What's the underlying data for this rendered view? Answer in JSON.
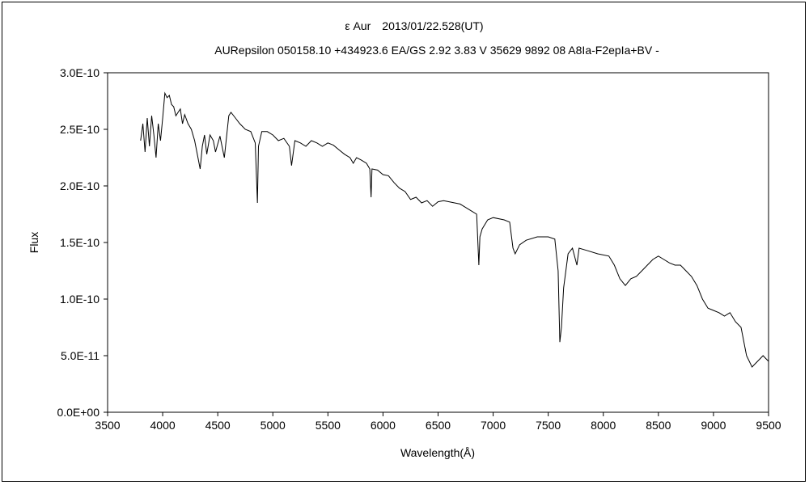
{
  "chart_data": {
    "type": "line",
    "title": "ε Aur　2013/01/22.528(UT)",
    "subtitle": "AURepsilon 050158.10 +434923.6 EA/GS 2.92 3.83 V 35629 9892 08 A8Ia-F2epIa+BV -",
    "xlabel": "Wavelength(Å)",
    "ylabel": "Flux",
    "xlim": [
      3500,
      9500
    ],
    "ylim": [
      0,
      3e-10
    ],
    "xticks": [
      3500,
      4000,
      4500,
      5000,
      5500,
      6000,
      6500,
      7000,
      7500,
      8000,
      8500,
      9000,
      9500
    ],
    "xtick_labels": [
      "3500",
      "4000",
      "4500",
      "5000",
      "5500",
      "6000",
      "6500",
      "7000",
      "7500",
      "8000",
      "8500",
      "9000",
      "9500"
    ],
    "yticks": [
      0,
      5e-11,
      1e-10,
      1.5e-10,
      2e-10,
      2.5e-10,
      3e-10
    ],
    "ytick_labels": [
      "0.0E+00",
      "5.0E-11",
      "1.0E-10",
      "1.5E-10",
      "2.0E-10",
      "2.5E-10",
      "3.0E-10"
    ],
    "grid": false,
    "line_color": "#000000",
    "x": [
      3800,
      3820,
      3840,
      3860,
      3880,
      3900,
      3920,
      3940,
      3960,
      3980,
      4000,
      4020,
      4040,
      4060,
      4080,
      4100,
      4120,
      4140,
      4160,
      4180,
      4200,
      4230,
      4260,
      4290,
      4320,
      4340,
      4360,
      4380,
      4400,
      4430,
      4460,
      4480,
      4520,
      4560,
      4600,
      4620,
      4660,
      4700,
      4750,
      4800,
      4840,
      4860,
      4870,
      4900,
      4950,
      5000,
      5050,
      5100,
      5150,
      5170,
      5200,
      5250,
      5300,
      5350,
      5400,
      5450,
      5500,
      5550,
      5600,
      5650,
      5700,
      5730,
      5760,
      5800,
      5850,
      5880,
      5892,
      5900,
      5950,
      6000,
      6050,
      6100,
      6150,
      6200,
      6250,
      6300,
      6350,
      6400,
      6450,
      6500,
      6550,
      6600,
      6650,
      6700,
      6800,
      6850,
      6870,
      6880,
      6900,
      6950,
      7000,
      7100,
      7150,
      7180,
      7200,
      7240,
      7300,
      7400,
      7500,
      7560,
      7590,
      7605,
      7620,
      7640,
      7680,
      7720,
      7760,
      7780,
      7850,
      7950,
      8050,
      8100,
      8150,
      8200,
      8250,
      8300,
      8350,
      8400,
      8450,
      8500,
      8550,
      8600,
      8650,
      8700,
      8750,
      8800,
      8850,
      8900,
      8950,
      9000,
      9050,
      9100,
      9150,
      9200,
      9250,
      9300,
      9350,
      9400,
      9450,
      9500
    ],
    "y": [
      2.4,
      2.55,
      2.3,
      2.6,
      2.35,
      2.62,
      2.45,
      2.25,
      2.55,
      2.4,
      2.6,
      2.82,
      2.78,
      2.8,
      2.72,
      2.7,
      2.62,
      2.65,
      2.68,
      2.55,
      2.63,
      2.55,
      2.5,
      2.4,
      2.25,
      2.15,
      2.35,
      2.45,
      2.28,
      2.45,
      2.4,
      2.3,
      2.44,
      2.25,
      2.62,
      2.65,
      2.6,
      2.55,
      2.5,
      2.48,
      2.38,
      1.85,
      2.35,
      2.48,
      2.48,
      2.45,
      2.4,
      2.42,
      2.35,
      2.18,
      2.4,
      2.38,
      2.35,
      2.4,
      2.38,
      2.35,
      2.38,
      2.36,
      2.32,
      2.28,
      2.25,
      2.2,
      2.25,
      2.23,
      2.2,
      2.15,
      1.9,
      2.15,
      2.14,
      2.1,
      2.09,
      2.03,
      1.98,
      1.95,
      1.88,
      1.9,
      1.85,
      1.87,
      1.82,
      1.86,
      1.87,
      1.86,
      1.85,
      1.84,
      1.78,
      1.75,
      1.3,
      1.55,
      1.62,
      1.7,
      1.72,
      1.7,
      1.68,
      1.45,
      1.4,
      1.48,
      1.52,
      1.55,
      1.55,
      1.53,
      1.25,
      0.62,
      0.75,
      1.1,
      1.4,
      1.45,
      1.3,
      1.45,
      1.43,
      1.4,
      1.38,
      1.3,
      1.18,
      1.12,
      1.18,
      1.2,
      1.25,
      1.3,
      1.35,
      1.38,
      1.35,
      1.32,
      1.3,
      1.3,
      1.25,
      1.2,
      1.12,
      1.0,
      0.92,
      0.9,
      0.88,
      0.85,
      0.88,
      0.8,
      0.75,
      0.5,
      0.4,
      0.45,
      0.5,
      0.45
    ],
    "y_unit_multiplier": 1e-10
  }
}
